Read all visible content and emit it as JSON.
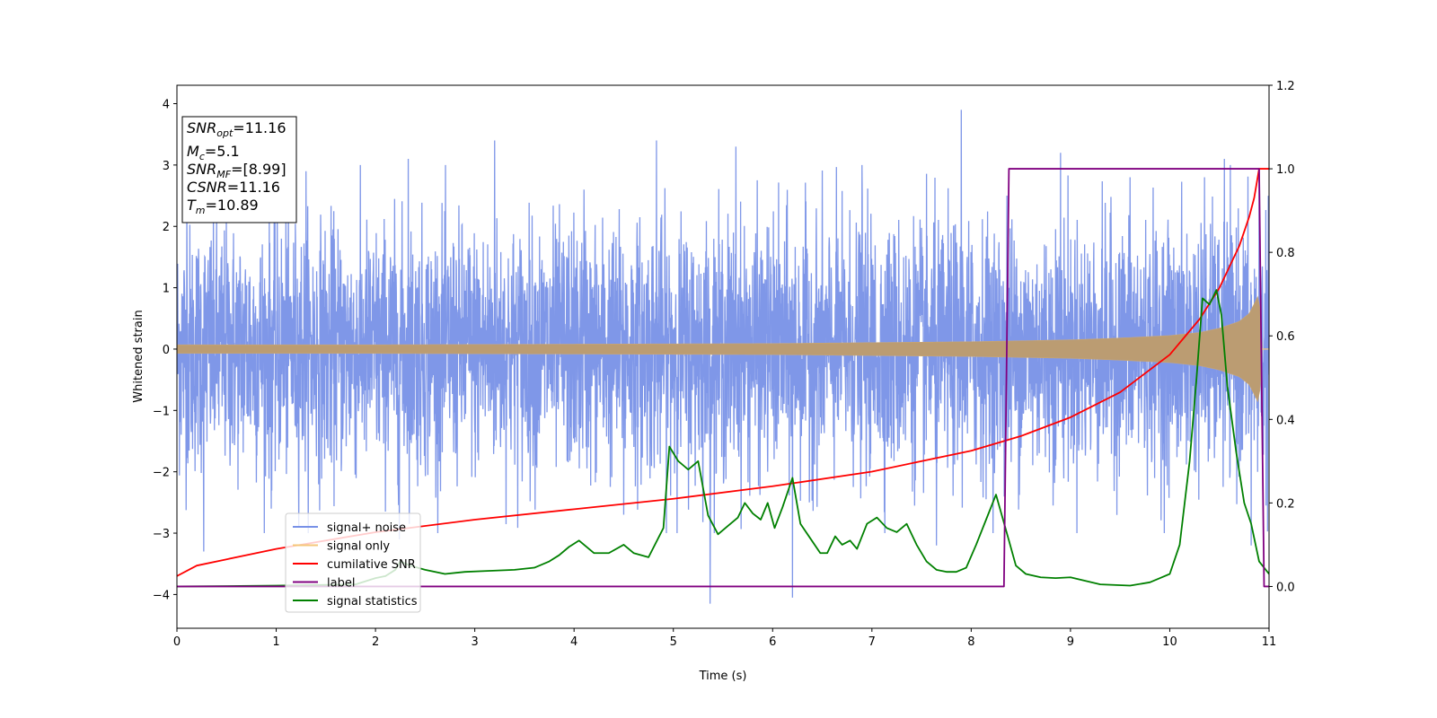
{
  "chart_data": {
    "type": "line",
    "title": "",
    "xlabel": "Time (s)",
    "ylabel": "Whitened strain",
    "xlim": [
      0,
      11
    ],
    "ylim": [
      -4.55,
      4.3
    ],
    "y2lim": [
      -0.1,
      1.2
    ],
    "xticks": [
      "0",
      "1",
      "2",
      "3",
      "4",
      "5",
      "6",
      "7",
      "8",
      "9",
      "10",
      "11"
    ],
    "yticks": [
      "4",
      "3",
      "2",
      "1",
      "0",
      "−1",
      "−2",
      "−3",
      "−4"
    ],
    "y2ticks": [
      "1.2",
      "1.0",
      "0.8",
      "0.6",
      "0.4",
      "0.2",
      "0.0"
    ],
    "grid": false,
    "legend_position": "lower-left",
    "annotation": {
      "lines": [
        {
          "base": "SNR",
          "sub": "opt",
          "value": "=11.16"
        },
        {
          "base": "M",
          "sub": "c",
          "value": "=5.1"
        },
        {
          "base": "SNR",
          "sub": "MF",
          "value": "=[8.99]"
        },
        {
          "base": "CSNR",
          "sub": "",
          "value": "=11.16"
        },
        {
          "base": "T",
          "sub": "m",
          "value": "=10.89"
        }
      ]
    },
    "series": [
      {
        "name": "signal+ noise",
        "axis": "left",
        "color": "#7891e7",
        "kind": "noise",
        "noise_sigma": 1.0,
        "extremes": [
          [
            0.1,
            2.4
          ],
          [
            0.27,
            -3.3
          ],
          [
            0.95,
            -2.6
          ],
          [
            1.3,
            2.9
          ],
          [
            2.24,
            -3.1
          ],
          [
            2.33,
            3.1
          ],
          [
            3.2,
            3.4
          ],
          [
            4.1,
            2.6
          ],
          [
            4.5,
            -2.7
          ],
          [
            4.83,
            3.4
          ],
          [
            5.37,
            -4.15
          ],
          [
            5.63,
            3.3
          ],
          [
            6.2,
            -4.05
          ],
          [
            6.9,
            3.0
          ],
          [
            7.65,
            -3.2
          ],
          [
            7.9,
            3.9
          ],
          [
            8.36,
            2.5
          ],
          [
            8.9,
            3.2
          ],
          [
            9.6,
            2.8
          ],
          [
            10.35,
            2.8
          ],
          [
            10.55,
            3.1
          ],
          [
            10.82,
            -3.2
          ],
          [
            10.9,
            2.8
          ]
        ]
      },
      {
        "name": "signal only",
        "axis": "left",
        "color": "#f5c779",
        "kind": "chirp",
        "envelope_t": [
          0,
          2,
          4,
          6,
          8,
          9,
          9.5,
          10,
          10.3,
          10.5,
          10.7,
          10.8,
          10.87,
          10.9,
          10.93
        ],
        "envelope_a": [
          0.07,
          0.07,
          0.08,
          0.09,
          0.12,
          0.15,
          0.18,
          0.22,
          0.27,
          0.34,
          0.45,
          0.58,
          0.8,
          0.9,
          0.05
        ]
      },
      {
        "name": "cumilative SNR",
        "axis": "right",
        "color": "#ff0000",
        "x": [
          0,
          0.2,
          0.5,
          1,
          1.5,
          2,
          3,
          4,
          5,
          6,
          7,
          8,
          8.5,
          9,
          9.5,
          10,
          10.3,
          10.5,
          10.7,
          10.8,
          10.85,
          10.9,
          11
        ],
        "y": [
          0.025,
          0.05,
          0.065,
          0.09,
          0.11,
          0.13,
          0.16,
          0.185,
          0.21,
          0.24,
          0.275,
          0.325,
          0.36,
          0.405,
          0.465,
          0.555,
          0.64,
          0.715,
          0.815,
          0.885,
          0.93,
          1.0,
          1.0
        ]
      },
      {
        "name": "label",
        "axis": "right",
        "color": "#800080",
        "x": [
          0,
          8.33,
          8.38,
          10.9,
          10.95,
          11
        ],
        "y": [
          0.0,
          0.0,
          1.0,
          1.0,
          0.0,
          0.0
        ]
      },
      {
        "name": "signal statistics",
        "axis": "right",
        "color": "#008000",
        "x": [
          0,
          1,
          1.8,
          2.0,
          2.1,
          2.2,
          2.25,
          2.35,
          2.5,
          2.7,
          2.9,
          3.1,
          3.4,
          3.6,
          3.75,
          3.85,
          3.95,
          4.05,
          4.2,
          4.35,
          4.5,
          4.6,
          4.75,
          4.9,
          4.96,
          5.05,
          5.15,
          5.25,
          5.35,
          5.45,
          5.55,
          5.65,
          5.72,
          5.8,
          5.88,
          5.95,
          6.02,
          6.1,
          6.2,
          6.28,
          6.38,
          6.48,
          6.55,
          6.63,
          6.7,
          6.78,
          6.85,
          6.95,
          7.05,
          7.15,
          7.25,
          7.35,
          7.45,
          7.55,
          7.65,
          7.75,
          7.85,
          7.95,
          8.05,
          8.15,
          8.25,
          8.38,
          8.45,
          8.55,
          8.7,
          8.85,
          9.0,
          9.3,
          9.6,
          9.8,
          9.9,
          10.0,
          10.1,
          10.2,
          10.27,
          10.33,
          10.4,
          10.47,
          10.52,
          10.58,
          10.67,
          10.75,
          10.82,
          10.9,
          11
        ],
        "y": [
          0.0,
          0.002,
          0.005,
          0.02,
          0.025,
          0.04,
          0.06,
          0.05,
          0.04,
          0.03,
          0.035,
          0.037,
          0.04,
          0.045,
          0.06,
          0.075,
          0.095,
          0.11,
          0.08,
          0.08,
          0.1,
          0.08,
          0.07,
          0.14,
          0.335,
          0.3,
          0.28,
          0.3,
          0.17,
          0.125,
          0.145,
          0.165,
          0.2,
          0.175,
          0.16,
          0.2,
          0.14,
          0.19,
          0.26,
          0.15,
          0.115,
          0.08,
          0.08,
          0.12,
          0.1,
          0.11,
          0.09,
          0.15,
          0.165,
          0.14,
          0.13,
          0.15,
          0.1,
          0.06,
          0.04,
          0.035,
          0.035,
          0.045,
          0.1,
          0.16,
          0.22,
          0.11,
          0.05,
          0.03,
          0.022,
          0.02,
          0.022,
          0.005,
          0.002,
          0.01,
          0.02,
          0.03,
          0.1,
          0.3,
          0.5,
          0.69,
          0.675,
          0.71,
          0.65,
          0.48,
          0.32,
          0.2,
          0.15,
          0.06,
          0.03
        ]
      }
    ]
  }
}
